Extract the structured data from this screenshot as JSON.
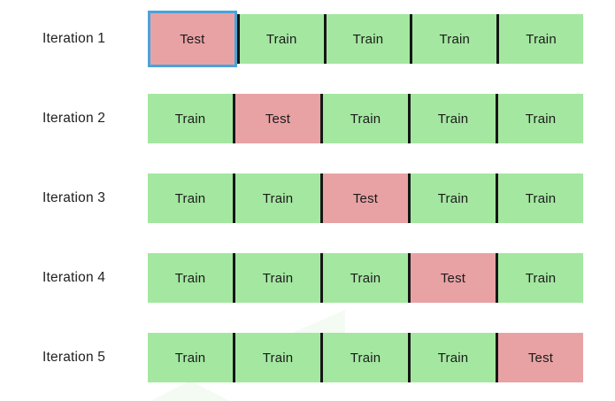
{
  "colors": {
    "background": "#ffffff",
    "train_fill": "#a4e7a0",
    "test_fill": "#e8a2a4",
    "divider": "#161616",
    "highlight_border": "#4aa3db",
    "label_text": "#212121",
    "cell_text": "#1b1b1b"
  },
  "highlighted_cell": {
    "row": 0,
    "col": 0
  },
  "iterations": [
    {
      "label": "Iteration 1",
      "cells": [
        "Test",
        "Train",
        "Train",
        "Train",
        "Train"
      ]
    },
    {
      "label": "Iteration 2",
      "cells": [
        "Train",
        "Test",
        "Train",
        "Train",
        "Train"
      ]
    },
    {
      "label": "Iteration 3",
      "cells": [
        "Train",
        "Train",
        "Test",
        "Train",
        "Train"
      ]
    },
    {
      "label": "Iteration 4",
      "cells": [
        "Train",
        "Train",
        "Train",
        "Test",
        "Train"
      ]
    },
    {
      "label": "Iteration 5",
      "cells": [
        "Train",
        "Train",
        "Train",
        "Train",
        "Test"
      ]
    }
  ]
}
